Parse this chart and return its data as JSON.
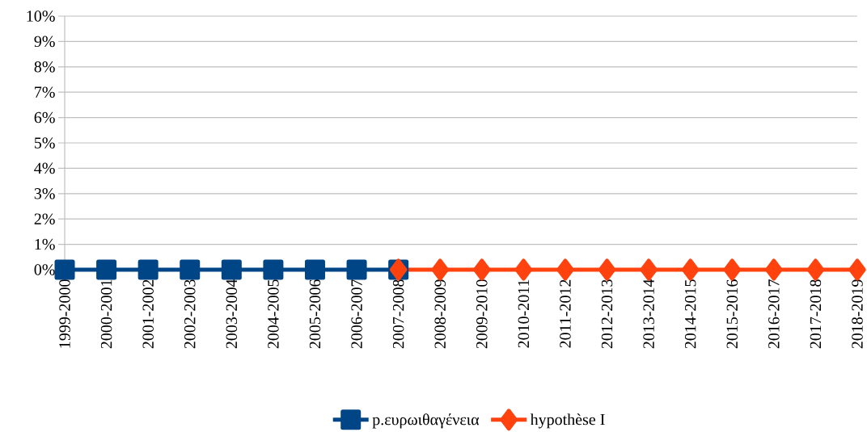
{
  "chart_data": {
    "type": "line",
    "categories": [
      "1999-2000",
      "2000-2001",
      "2001-2002",
      "2002-2003",
      "2003-2004",
      "2004-2005",
      "2005-2006",
      "2006-2007",
      "2007-2008",
      "2008-2009",
      "2009-2010",
      "2010-2011",
      "2011-2012",
      "2012-2013",
      "2013-2014",
      "2014-2015",
      "2015-2016",
      "2016-2017",
      "2017-2018",
      "2018-2019"
    ],
    "series": [
      {
        "name": "p.ευρωιθαγένεια",
        "color": "#004586",
        "marker": "square",
        "values": [
          0,
          0,
          0,
          0,
          0,
          0,
          0,
          0,
          0,
          null,
          null,
          null,
          null,
          null,
          null,
          null,
          null,
          null,
          null,
          null
        ]
      },
      {
        "name": "hypothèse I",
        "color": "#ff420e",
        "marker": "diamond",
        "values": [
          null,
          null,
          null,
          null,
          null,
          null,
          null,
          null,
          0,
          0,
          0,
          0,
          0,
          0,
          0,
          0,
          0,
          0,
          0,
          0
        ]
      }
    ],
    "ylim": [
      0,
      10
    ],
    "yticks": [
      {
        "value": 0,
        "label": "0%"
      },
      {
        "value": 1,
        "label": "1%"
      },
      {
        "value": 2,
        "label": "2%"
      },
      {
        "value": 3,
        "label": "3%"
      },
      {
        "value": 4,
        "label": "4%"
      },
      {
        "value": 5,
        "label": "5%"
      },
      {
        "value": 6,
        "label": "6%"
      },
      {
        "value": 7,
        "label": "7%"
      },
      {
        "value": 8,
        "label": "8%"
      },
      {
        "value": 9,
        "label": "9%"
      },
      {
        "value": 10,
        "label": "10%"
      }
    ],
    "grid": "y",
    "legend": "bottom",
    "line_style": "solid"
  }
}
